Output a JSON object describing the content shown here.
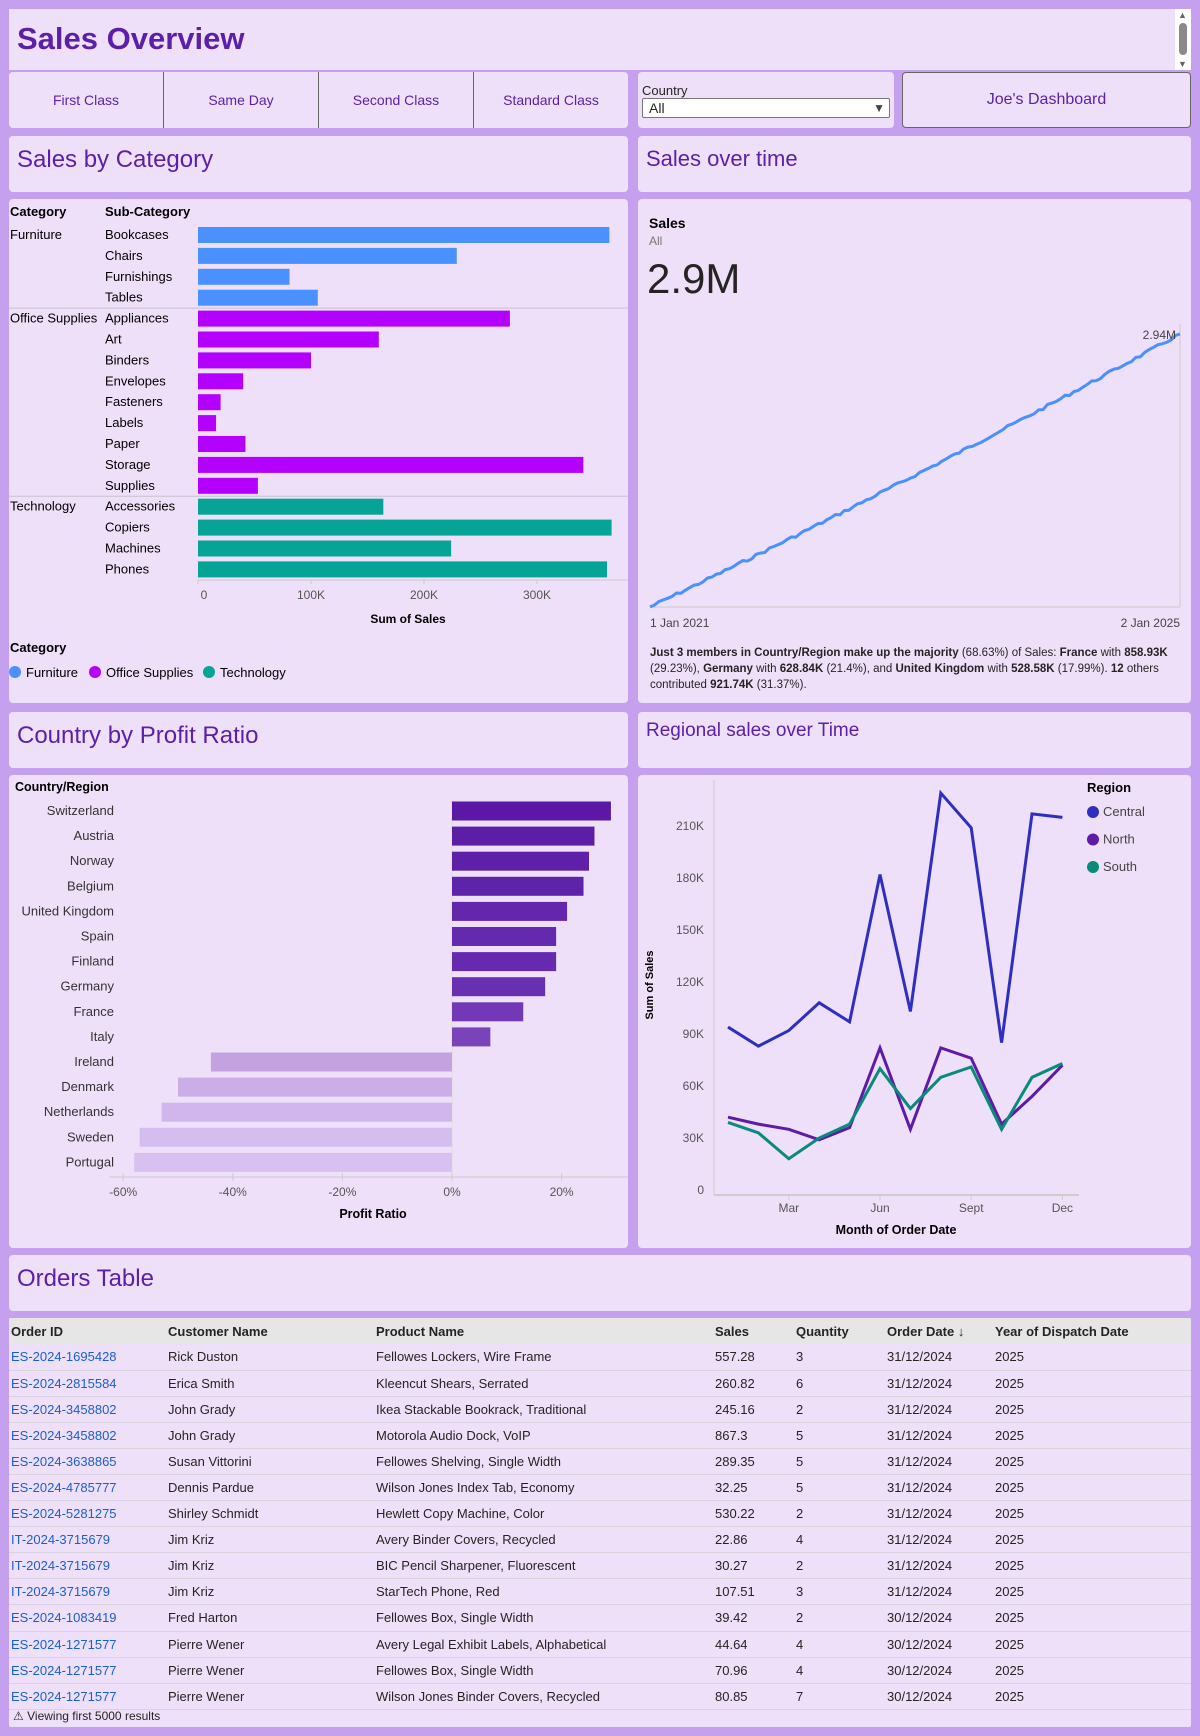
{
  "header": {
    "title": "Sales Overview"
  },
  "ship_modes": [
    "First Class",
    "Same Day",
    "Second Class",
    "Standard Class"
  ],
  "country_filter": {
    "label": "Country",
    "value": "All"
  },
  "nav_button": "Joe's Dashboard",
  "titles": {
    "category": "Sales by Category",
    "time": "Sales over time",
    "profit": "Country by Profit Ratio",
    "regional": "Regional sales over Time",
    "orders": "Orders Table"
  },
  "colors": {
    "furniture": "#4a90ff",
    "office": "#b400ff",
    "technology": "#05a496",
    "central": "#2f2fbf",
    "north": "#5f1aa8",
    "south": "#0a8a7a"
  },
  "category_chart": {
    "type": "bar",
    "header_category": "Category",
    "header_sub": "Sub-Category",
    "xlabel": "Sum of Sales",
    "ticks": [
      "0",
      "100K",
      "200K",
      "300K"
    ],
    "tick_values": [
      0,
      100000,
      200000,
      300000
    ],
    "legend_title": "Category",
    "legend": [
      "Furniture",
      "Office Supplies",
      "Technology"
    ],
    "groups": [
      {
        "category": "Furniture",
        "items": [
          [
            "Bookcases",
            364000
          ],
          [
            "Chairs",
            229000
          ],
          [
            "Furnishings",
            81000
          ],
          [
            "Tables",
            106000
          ]
        ]
      },
      {
        "category": "Office Supplies",
        "items": [
          [
            "Appliances",
            276000
          ],
          [
            "Art",
            160000
          ],
          [
            "Binders",
            100000
          ],
          [
            "Envelopes",
            40000
          ],
          [
            "Fasteners",
            20000
          ],
          [
            "Labels",
            16000
          ],
          [
            "Paper",
            42000
          ],
          [
            "Storage",
            341000
          ],
          [
            "Supplies",
            53000
          ]
        ]
      },
      {
        "category": "Technology",
        "items": [
          [
            "Accessories",
            164000
          ],
          [
            "Copiers",
            366000
          ],
          [
            "Machines",
            224000
          ],
          [
            "Phones",
            362000
          ]
        ]
      }
    ]
  },
  "time_card": {
    "label": "Sales",
    "sublabel": "All",
    "value": "2.9M",
    "end_label": "2.94M",
    "start_date": "1 Jan 2021",
    "end_date": "2 Jan 2025",
    "insight": [
      {
        "b": "Just 3 members in Country/Region make up the majority"
      },
      {
        "t": " (68.63%) of Sales: "
      },
      {
        "b": "France"
      },
      {
        "t": " with "
      },
      {
        "b": "858.93K"
      },
      {
        "t": " (29.23%), "
      },
      {
        "b": "Germany"
      },
      {
        "t": " with "
      },
      {
        "b": "628.84K"
      },
      {
        "t": " (21.4%), and "
      },
      {
        "b": "United Kingdom"
      },
      {
        "t": " with "
      },
      {
        "b": "528.58K"
      },
      {
        "t": " (17.99%). "
      },
      {
        "b": "12"
      },
      {
        "t": " others contributed "
      },
      {
        "b": "921.74K"
      },
      {
        "t": " (31.37%)."
      }
    ]
  },
  "chart_data": [
    {
      "type": "bar",
      "title": "Country by Profit Ratio",
      "ylabel": "Country/Region",
      "xlabel": "Profit Ratio",
      "xlim": [
        -60,
        30
      ],
      "ticks": [
        "-60%",
        "-40%",
        "-20%",
        "0%",
        "20%"
      ],
      "tick_values": [
        -60,
        -40,
        -20,
        0,
        20
      ],
      "categories": [
        "Switzerland",
        "Austria",
        "Norway",
        "Belgium",
        "United Kingdom",
        "Spain",
        "Finland",
        "Germany",
        "France",
        "Italy",
        "Ireland",
        "Denmark",
        "Netherlands",
        "Sweden",
        "Portugal"
      ],
      "values": [
        29,
        26,
        25,
        24,
        21,
        19,
        19,
        17,
        13,
        7,
        -44,
        -50,
        -53,
        -57,
        -58
      ]
    },
    {
      "type": "line",
      "title": "Regional sales over Time",
      "xlabel": "Month of Order Date",
      "ylabel": "Sum of Sales",
      "ylim": [
        0,
        230000
      ],
      "y_ticks": [
        "0",
        "30K",
        "60K",
        "90K",
        "120K",
        "150K",
        "180K",
        "210K"
      ],
      "y_tick_values": [
        0,
        30000,
        60000,
        90000,
        120000,
        150000,
        180000,
        210000
      ],
      "x": [
        "Jan",
        "Feb",
        "Mar",
        "Apr",
        "May",
        "Jun",
        "Jul",
        "Aug",
        "Sept",
        "Oct",
        "Nov",
        "Dec"
      ],
      "x_ticks": [
        "Mar",
        "Jun",
        "Sept",
        "Dec"
      ],
      "legend_title": "Region",
      "series": [
        {
          "name": "Central",
          "values": [
            94000,
            83000,
            92000,
            108000,
            97000,
            182000,
            103000,
            229000,
            209000,
            85000,
            217000,
            215000
          ]
        },
        {
          "name": "North",
          "values": [
            42000,
            38000,
            35000,
            29000,
            36000,
            82000,
            35000,
            82000,
            76000,
            38000,
            54000,
            72000
          ]
        },
        {
          "name": "South",
          "values": [
            39000,
            33000,
            18000,
            30000,
            38000,
            70000,
            47000,
            65000,
            71000,
            35000,
            65000,
            73000
          ]
        }
      ]
    }
  ],
  "orders": {
    "columns": [
      "Order ID",
      "Customer Name",
      "Product Name",
      "Sales",
      "Quantity",
      "Order Date",
      "Year of Dispatch Date"
    ],
    "rows": [
      [
        "ES-2024-1695428",
        "Rick Duston",
        "Fellowes Lockers, Wire Frame",
        "557.28",
        "3",
        "31/12/2024",
        "2025"
      ],
      [
        "ES-2024-2815584",
        "Erica Smith",
        "Kleencut Shears, Serrated",
        "260.82",
        "6",
        "31/12/2024",
        "2025"
      ],
      [
        "ES-2024-3458802",
        "John Grady",
        "Ikea Stackable Bookrack, Traditional",
        "245.16",
        "2",
        "31/12/2024",
        "2025"
      ],
      [
        "ES-2024-3458802",
        "John Grady",
        "Motorola Audio Dock, VoIP",
        "867.3",
        "5",
        "31/12/2024",
        "2025"
      ],
      [
        "ES-2024-3638865",
        "Susan Vittorini",
        "Fellowes Shelving, Single Width",
        "289.35",
        "5",
        "31/12/2024",
        "2025"
      ],
      [
        "ES-2024-4785777",
        "Dennis Pardue",
        "Wilson Jones Index Tab, Economy",
        "32.25",
        "5",
        "31/12/2024",
        "2025"
      ],
      [
        "ES-2024-5281275",
        "Shirley Schmidt",
        "Hewlett Copy Machine, Color",
        "530.22",
        "2",
        "31/12/2024",
        "2025"
      ],
      [
        "IT-2024-3715679",
        "Jim Kriz",
        "Avery Binder Covers, Recycled",
        "22.86",
        "4",
        "31/12/2024",
        "2025"
      ],
      [
        "IT-2024-3715679",
        "Jim Kriz",
        "BIC Pencil Sharpener, Fluorescent",
        "30.27",
        "2",
        "31/12/2024",
        "2025"
      ],
      [
        "IT-2024-3715679",
        "Jim Kriz",
        "StarTech Phone, Red",
        "107.51",
        "3",
        "31/12/2024",
        "2025"
      ],
      [
        "ES-2024-1083419",
        "Fred Harton",
        "Fellowes Box, Single Width",
        "39.42",
        "2",
        "30/12/2024",
        "2025"
      ],
      [
        "ES-2024-1271577",
        "Pierre Wener",
        "Avery Legal Exhibit Labels, Alphabetical",
        "44.64",
        "4",
        "30/12/2024",
        "2025"
      ],
      [
        "ES-2024-1271577",
        "Pierre Wener",
        "Fellowes Box, Single Width",
        "70.96",
        "4",
        "30/12/2024",
        "2025"
      ],
      [
        "ES-2024-1271577",
        "Pierre Wener",
        "Wilson Jones Binder Covers, Recycled",
        "80.85",
        "7",
        "30/12/2024",
        "2025"
      ]
    ],
    "sort_icon": "arrow-down-icon",
    "footer": "Viewing first 5000 results",
    "footer_icon": "warning-icon"
  }
}
